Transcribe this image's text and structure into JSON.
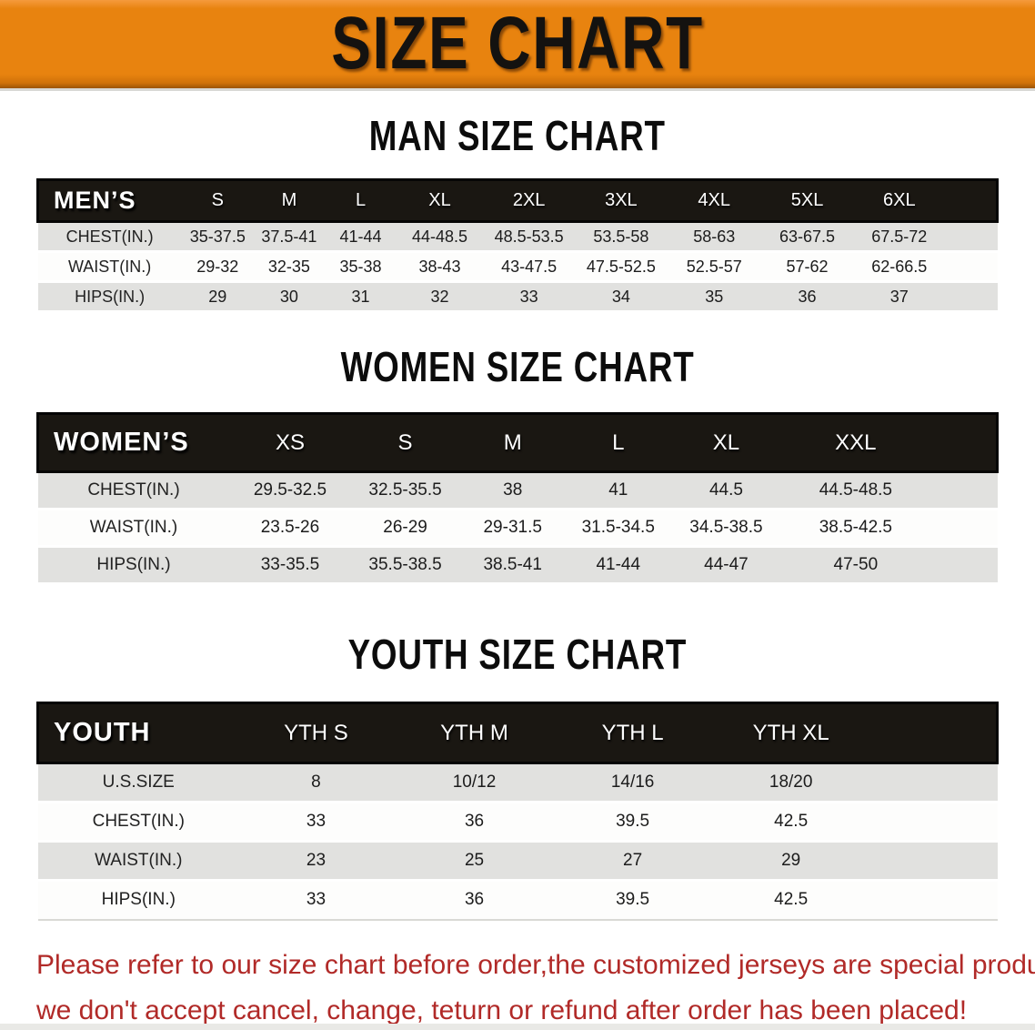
{
  "banner": {
    "title": "SIZE CHART"
  },
  "colors": {
    "banner_orange": "#e8830f",
    "header_black": "#1a1712",
    "row_gray": "#e1e1df",
    "footer_red": "#b12a28"
  },
  "sections": [
    {
      "id": "men",
      "heading": "MAN SIZE CHART",
      "corner_label": "MEN’S",
      "sizes": [
        "S",
        "M",
        "L",
        "XL",
        "2XL",
        "3XL",
        "4XL",
        "5XL",
        "6XL"
      ],
      "rows": [
        {
          "label": "CHEST(IN.)",
          "values": [
            "35-37.5",
            "37.5-41",
            "41-44",
            "44-48.5",
            "48.5-53.5",
            "53.5-58",
            "58-63",
            "63-67.5",
            "67.5-72"
          ]
        },
        {
          "label": "WAIST(IN.)",
          "values": [
            "29-32",
            "32-35",
            "35-38",
            "38-43",
            "43-47.5",
            "47.5-52.5",
            "52.5-57",
            "57-62",
            "62-66.5"
          ]
        },
        {
          "label": "HIPS(IN.)",
          "values": [
            "29",
            "30",
            "31",
            "32",
            "33",
            "34",
            "35",
            "36",
            "37"
          ]
        }
      ]
    },
    {
      "id": "women",
      "heading": "WOMEN SIZE CHART",
      "corner_label": "WOMEN’S",
      "sizes": [
        "XS",
        "S",
        "M",
        "L",
        "XL",
        "XXL"
      ],
      "rows": [
        {
          "label": "CHEST(IN.)",
          "values": [
            "29.5-32.5",
            "32.5-35.5",
            "38",
            "41",
            "44.5",
            "44.5-48.5"
          ]
        },
        {
          "label": "WAIST(IN.)",
          "values": [
            "23.5-26",
            "26-29",
            "29-31.5",
            "31.5-34.5",
            "34.5-38.5",
            "38.5-42.5"
          ]
        },
        {
          "label": "HIPS(IN.)",
          "values": [
            "33-35.5",
            "35.5-38.5",
            "38.5-41",
            "41-44",
            "44-47",
            "47-50"
          ]
        }
      ]
    },
    {
      "id": "youth",
      "heading": "YOUTH SIZE CHART",
      "corner_label": "YOUTH",
      "sizes": [
        "YTH S",
        "YTH M",
        "YTH L",
        "YTH XL"
      ],
      "rows": [
        {
          "label": "U.S.SIZE",
          "values": [
            "8",
            "10/12",
            "14/16",
            "18/20"
          ]
        },
        {
          "label": "CHEST(IN.)",
          "values": [
            "33",
            "36",
            "39.5",
            "42.5"
          ]
        },
        {
          "label": "WAIST(IN.)",
          "values": [
            "23",
            "25",
            "27",
            "29"
          ]
        },
        {
          "label": "HIPS(IN.)",
          "values": [
            "33",
            "36",
            "39.5",
            "42.5"
          ]
        }
      ]
    }
  ],
  "footer_note": {
    "line1": "Please refer to our size chart before order,the customized jerseys are special products,",
    "line2": "we don't accept cancel, change, teturn or refund after order has been placed!"
  }
}
